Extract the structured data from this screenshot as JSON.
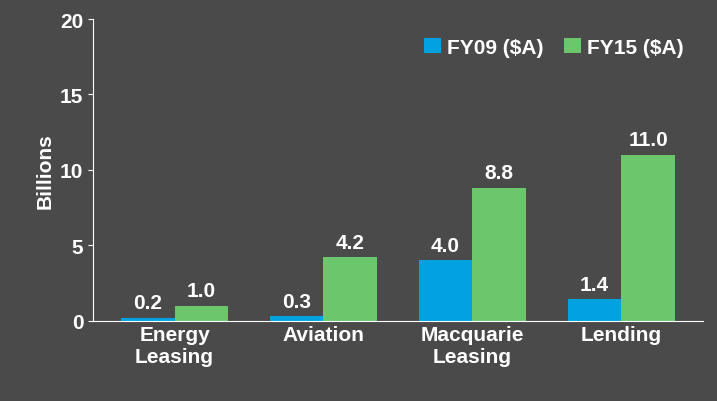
{
  "chart_data": {
    "type": "bar",
    "y_label": "Billions",
    "categories": [
      "Energy Leasing",
      "Aviation",
      "Macquarie Leasing",
      "Lending"
    ],
    "series": [
      {
        "name": "FY09 ($A)",
        "color": "#00A3E0",
        "values": [
          0.2,
          0.3,
          4.0,
          1.4
        ]
      },
      {
        "name": "FY15 ($A)",
        "color": "#6CC66C",
        "values": [
          1.0,
          4.2,
          8.8,
          11.0
        ]
      }
    ],
    "ylim": [
      0,
      20
    ],
    "yticks": [
      0,
      5,
      10,
      15,
      20
    ],
    "data_labels": true,
    "legend": "upper right",
    "grid": false
  }
}
